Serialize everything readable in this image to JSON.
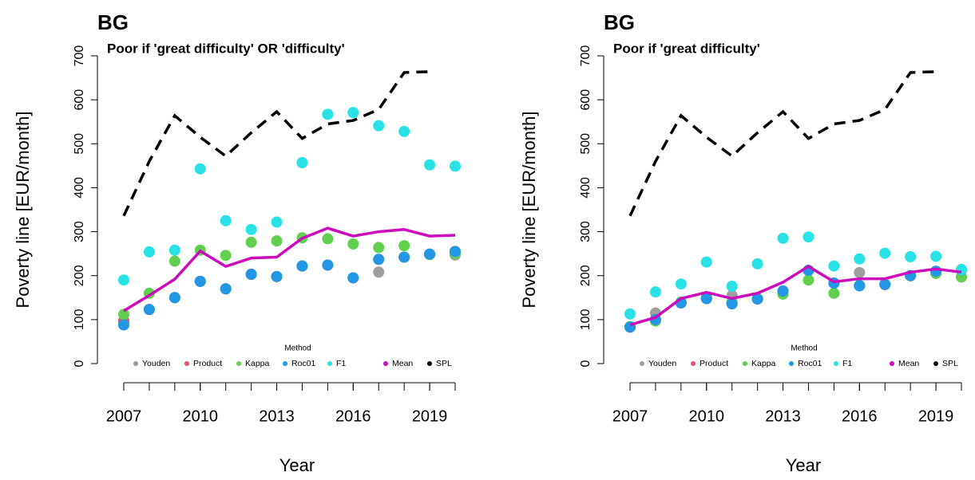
{
  "chart_data": [
    {
      "type": "line",
      "title": "BG",
      "subtitle": "Poor if 'great difficulty' OR 'difficulty'",
      "xlabel": "Year",
      "ylabel": "Poverty line [EUR/month]",
      "legend_title": "Method",
      "x": [
        2007,
        2008,
        2009,
        2010,
        2011,
        2012,
        2013,
        2014,
        2015,
        2016,
        2017,
        2018,
        2019,
        2020
      ],
      "xlim": [
        2007,
        2020
      ],
      "xticks": [
        2007,
        2010,
        2013,
        2016,
        2019
      ],
      "ylim": [
        0,
        700
      ],
      "yticks": [
        0,
        100,
        200,
        300,
        400,
        500,
        600,
        700
      ],
      "series": [
        {
          "name": "Youden",
          "color": "#9e9e9e",
          "draw": "points",
          "values": [
            88,
            123,
            150,
            187,
            170,
            203,
            198,
            222,
            224,
            195,
            208,
            242,
            249,
            247
          ]
        },
        {
          "name": "Product",
          "color": "#df536b",
          "draw": "points",
          "values": [
            97,
            123,
            150,
            187,
            170,
            203,
            198,
            222,
            224,
            195,
            237,
            242,
            249,
            255
          ]
        },
        {
          "name": "Kappa",
          "color": "#61d04f",
          "draw": "points",
          "values": [
            112,
            160,
            233,
            258,
            246,
            276,
            279,
            286,
            284,
            272,
            264,
            268,
            248,
            250
          ]
        },
        {
          "name": "Roc01",
          "color": "#2297e6",
          "draw": "points",
          "values": [
            88,
            123,
            150,
            187,
            170,
            203,
            198,
            222,
            224,
            195,
            237,
            242,
            249,
            255
          ]
        },
        {
          "name": "F1",
          "color": "#28e2e5",
          "draw": "points",
          "values": [
            190,
            254,
            258,
            443,
            325,
            305,
            322,
            457,
            567,
            571,
            541,
            528,
            452,
            449
          ]
        },
        {
          "name": "Mean",
          "color": "#cd0bbc",
          "draw": "line",
          "values": [
            120,
            155,
            192,
            256,
            221,
            240,
            242,
            285,
            308,
            290,
            300,
            305,
            290,
            292
          ]
        },
        {
          "name": "SPL",
          "color": "#000000",
          "draw": "dashed",
          "values": [
            336,
            460,
            564,
            515,
            472,
            525,
            573,
            512,
            545,
            553,
            578,
            662,
            664,
            null
          ]
        }
      ]
    },
    {
      "type": "line",
      "title": "BG",
      "subtitle": "Poor if 'great difficulty'",
      "xlabel": "Year",
      "ylabel": "Poverty line [EUR/month]",
      "legend_title": "Method",
      "x": [
        2007,
        2008,
        2009,
        2010,
        2011,
        2012,
        2013,
        2014,
        2015,
        2016,
        2017,
        2018,
        2019,
        2020
      ],
      "xlim": [
        2007,
        2020
      ],
      "xticks": [
        2007,
        2010,
        2013,
        2016,
        2019
      ],
      "ylim": [
        0,
        700
      ],
      "yticks": [
        0,
        100,
        200,
        300,
        400,
        500,
        600,
        700
      ],
      "series": [
        {
          "name": "Youden",
          "color": "#9e9e9e",
          "draw": "points",
          "values": [
            83,
            115,
            138,
            148,
            155,
            147,
            165,
            212,
            183,
            207,
            180,
            200,
            210,
            213
          ]
        },
        {
          "name": "Product",
          "color": "#df536b",
          "draw": "points",
          "values": [
            83,
            100,
            138,
            148,
            136,
            147,
            165,
            212,
            183,
            177,
            180,
            200,
            210,
            213
          ]
        },
        {
          "name": "Kappa",
          "color": "#61d04f",
          "draw": "points",
          "values": [
            84,
            97,
            140,
            150,
            140,
            148,
            158,
            190,
            160,
            178,
            180,
            200,
            205,
            197
          ]
        },
        {
          "name": "Roc01",
          "color": "#2297e6",
          "draw": "points",
          "values": [
            83,
            100,
            138,
            148,
            136,
            147,
            165,
            212,
            183,
            177,
            180,
            200,
            210,
            213
          ]
        },
        {
          "name": "F1",
          "color": "#28e2e5",
          "draw": "points",
          "values": [
            113,
            163,
            181,
            231,
            176,
            227,
            285,
            288,
            222,
            238,
            251,
            243,
            244,
            214
          ]
        },
        {
          "name": "Mean",
          "color": "#cd0bbc",
          "draw": "line",
          "values": [
            88,
            105,
            148,
            162,
            148,
            160,
            185,
            221,
            186,
            193,
            193,
            208,
            215,
            208
          ]
        },
        {
          "name": "SPL",
          "color": "#000000",
          "draw": "dashed",
          "values": [
            336,
            460,
            564,
            515,
            472,
            525,
            573,
            512,
            545,
            553,
            578,
            662,
            664,
            null
          ]
        }
      ]
    }
  ]
}
